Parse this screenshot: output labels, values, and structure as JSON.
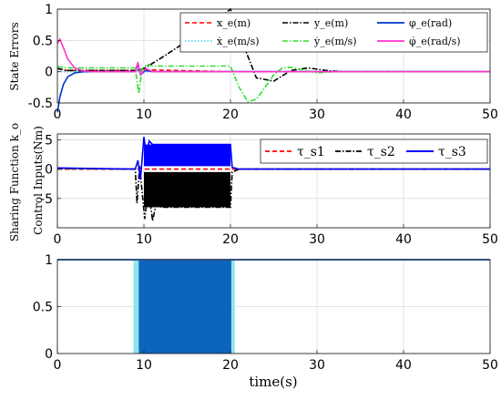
{
  "chart_data": [
    {
      "type": "line",
      "ylabel": "State Errors",
      "xlim": [
        0,
        50
      ],
      "ylim": [
        -0.5,
        1
      ],
      "xticks": [
        "0",
        "10",
        "20",
        "30",
        "40",
        "50"
      ],
      "yticks": [
        "-0.5",
        "0",
        "0.5",
        "1"
      ],
      "grid": true,
      "legend": "top-right",
      "series": [
        {
          "name": "x_e(m)",
          "color": "#ff0000",
          "dash": "dashed",
          "x": [
            0,
            1,
            9,
            10,
            20,
            50
          ],
          "y": [
            0.05,
            0.02,
            0.02,
            0.03,
            0.0,
            0.0
          ]
        },
        {
          "name": "ẋ_e(m/s)",
          "color": "#5ad8f0",
          "dash": "dotted",
          "x": [
            0,
            1,
            9,
            20,
            50
          ],
          "y": [
            0.0,
            0.0,
            0.0,
            0.0,
            0.0
          ]
        },
        {
          "name": "y_e(m)",
          "color": "#000000",
          "dash": "dashdot",
          "x": [
            0,
            1,
            9,
            10,
            12,
            14,
            16,
            18,
            20,
            21,
            22,
            23,
            25,
            27,
            29,
            31,
            33,
            50
          ],
          "y": [
            0.05,
            0.02,
            0.02,
            0.05,
            0.22,
            0.4,
            0.58,
            0.78,
            1.0,
            0.6,
            0.25,
            -0.1,
            -0.15,
            0.02,
            0.06,
            0.02,
            0.0,
            0.0
          ]
        },
        {
          "name": "ẏ_e(m/s)",
          "color": "#33dd33",
          "dash": "dashdot",
          "x": [
            0,
            1,
            9,
            9.4,
            9.8,
            10.4,
            11,
            20,
            21,
            22,
            23,
            24,
            25,
            26,
            27,
            28,
            30,
            32,
            50
          ],
          "y": [
            0.08,
            0.06,
            0.06,
            -0.35,
            0.05,
            0.12,
            0.09,
            0.09,
            -0.25,
            -0.48,
            -0.44,
            -0.25,
            -0.05,
            0.06,
            0.07,
            0.04,
            -0.02,
            0.0,
            0.0
          ]
        },
        {
          "name": "φ_e(rad)",
          "color": "#0033cc",
          "dash": "solid",
          "x": [
            0,
            0.3,
            0.7,
            1.2,
            2,
            3,
            4,
            9,
            9.3,
            9.6,
            10.2,
            11,
            50
          ],
          "y": [
            -0.65,
            -0.4,
            -0.2,
            -0.08,
            -0.02,
            0.0,
            0.0,
            0.0,
            0.12,
            -0.05,
            0.02,
            0.0,
            0.0
          ]
        },
        {
          "name": "φ̇_e(rad/s)",
          "color": "#ff33cc",
          "dash": "solid",
          "x": [
            0,
            0.3,
            0.7,
            1.2,
            2,
            3,
            4,
            9,
            9.3,
            9.6,
            10.2,
            11,
            50
          ],
          "y": [
            0.45,
            0.52,
            0.38,
            0.2,
            0.06,
            0.01,
            0.0,
            0.0,
            0.15,
            -0.05,
            0.05,
            0.0,
            0.0
          ]
        }
      ]
    },
    {
      "type": "line",
      "ylabel": "Control Inputs(Nm)",
      "xlim": [
        0,
        50
      ],
      "ylim": [
        -10,
        6
      ],
      "xticks": [
        "0",
        "10",
        "20",
        "30",
        "40",
        "50"
      ],
      "yticks": [
        "-5",
        "0",
        "5"
      ],
      "grid": true,
      "legend": "top-right",
      "bands": [
        {
          "x0": 10,
          "x1": 20,
          "y0": 0.5,
          "y1": 4.2,
          "color": "#0000ff"
        },
        {
          "x0": 10,
          "x1": 20,
          "y0": -6.5,
          "y1": -0.5,
          "color": "#000000"
        }
      ],
      "series": [
        {
          "name": "τ_s1",
          "color": "#ff0000",
          "dash": "dashed",
          "x": [
            0,
            50
          ],
          "y": [
            0,
            0
          ]
        },
        {
          "name": "τ_s2",
          "color": "#000000",
          "dash": "dashdot",
          "x": [
            0,
            9,
            9.2,
            9.5,
            9.8,
            10.1,
            10.5,
            11,
            11.4,
            12,
            20,
            20.2,
            21,
            50
          ],
          "y": [
            0.1,
            0.0,
            -5.8,
            0.5,
            -4,
            -8.5,
            -3,
            -8.8,
            -6,
            -6.5,
            -6.5,
            -0.5,
            0.0,
            0.0
          ]
        },
        {
          "name": "τ_s3",
          "color": "#0000ff",
          "dash": "solid",
          "x": [
            0,
            9,
            9.3,
            9.6,
            10,
            10.3,
            10.6,
            11,
            12,
            20,
            20.2,
            21,
            50
          ],
          "y": [
            0.2,
            0.0,
            1.5,
            -1.8,
            5.5,
            2,
            4.8,
            4.2,
            4.2,
            4.2,
            0.3,
            0.0,
            0.0
          ]
        }
      ]
    },
    {
      "type": "area",
      "ylabel": "Sharing Function k_o",
      "xlabel": "time(s)",
      "xlim": [
        0,
        50
      ],
      "ylim": [
        0,
        1
      ],
      "xticks": [
        "0",
        "10",
        "20",
        "30",
        "40",
        "50"
      ],
      "yticks": [
        "0",
        "0.5",
        "1"
      ],
      "grid": true,
      "line": {
        "color": "#4472c4",
        "x": [
          0,
          50
        ],
        "y": [
          1,
          1
        ]
      },
      "bands": [
        {
          "x0": 8.8,
          "x1": 9.4,
          "y0": 0,
          "y1": 1,
          "color": "#8ee4ee"
        },
        {
          "x0": 9.4,
          "x1": 20.1,
          "y0": 0,
          "y1": 1,
          "color": "#0d64bd"
        },
        {
          "x0": 20.1,
          "x1": 20.5,
          "y0": 0,
          "y1": 1,
          "color": "#8ee4ee"
        }
      ]
    }
  ]
}
